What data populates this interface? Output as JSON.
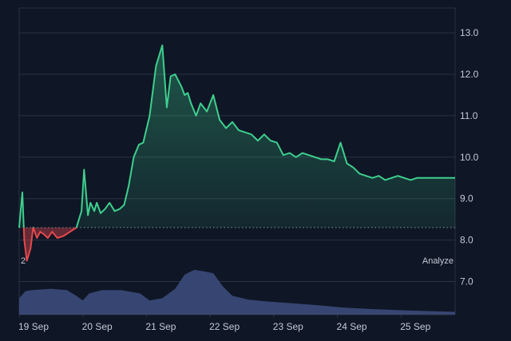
{
  "chart_data": {
    "type": "line",
    "theme": {
      "background": "#0f1625",
      "grid": "#2a3344",
      "up": "#3ecf8e",
      "down": "#e5484d",
      "volume": "#3b4a7a",
      "text": "#c4c9d4"
    },
    "x_tick_labels": [
      "19 Sep",
      "20 Sep",
      "21 Sep",
      "22 Sep",
      "23 Sep",
      "24 Sep",
      "25 Sep"
    ],
    "y_tick_labels": [
      "13.0",
      "12.0",
      "11.0",
      "10.0",
      "9.0",
      "8.0",
      "7.0"
    ],
    "y_ticks": [
      13,
      12,
      11,
      10,
      9,
      8,
      7
    ],
    "ylim": [
      6.2,
      13.6
    ],
    "baseline": 8.3,
    "grid": true,
    "volume_label": "2",
    "analyze_label": "Analyze",
    "series": [
      {
        "x": [
          0,
          0.05,
          0.08,
          0.12,
          0.18,
          0.22,
          0.28,
          0.33,
          0.38,
          0.45,
          0.52,
          0.6,
          0.7,
          0.8,
          0.9,
          0.98,
          1.02,
          1.08,
          1.12,
          1.18,
          1.22,
          1.28,
          1.35,
          1.42,
          1.5,
          1.58,
          1.65,
          1.72,
          1.8,
          1.88,
          1.95,
          2.05,
          2.15,
          2.25,
          2.32,
          2.38,
          2.45,
          2.5,
          2.55,
          2.6,
          2.65,
          2.7,
          2.78,
          2.85,
          2.95,
          3.05,
          3.15,
          3.25,
          3.35,
          3.45,
          3.55,
          3.65,
          3.75,
          3.85,
          3.95,
          4.05,
          4.15,
          4.25,
          4.35,
          4.45,
          4.55,
          4.65,
          4.75,
          4.85,
          4.95,
          5.05,
          5.15,
          5.25,
          5.35,
          5.45,
          5.55,
          5.65,
          5.75,
          5.85,
          5.95,
          6.05,
          6.15,
          6.25,
          6.35,
          6.45,
          6.55,
          6.65,
          6.75,
          6.85
        ],
        "values": [
          8.3,
          9.15,
          8.0,
          7.5,
          7.8,
          8.3,
          8.05,
          8.2,
          8.15,
          8.05,
          8.2,
          8.05,
          8.1,
          8.2,
          8.3,
          8.7,
          9.7,
          8.6,
          8.9,
          8.7,
          8.9,
          8.65,
          8.75,
          8.9,
          8.7,
          8.75,
          8.85,
          9.3,
          10.0,
          10.3,
          10.35,
          11.0,
          12.2,
          12.7,
          11.2,
          11.95,
          12.0,
          11.85,
          11.7,
          11.5,
          11.55,
          11.3,
          11.0,
          11.3,
          11.1,
          11.5,
          10.9,
          10.7,
          10.85,
          10.65,
          10.6,
          10.55,
          10.4,
          10.55,
          10.4,
          10.35,
          10.05,
          10.1,
          10.0,
          10.1,
          10.05,
          10.0,
          9.95,
          9.95,
          9.9,
          10.35,
          9.85,
          9.75,
          9.6,
          9.55,
          9.5,
          9.55,
          9.45,
          9.5,
          9.55,
          9.5,
          9.45,
          9.5,
          9.5,
          9.5,
          9.5,
          9.5,
          9.5,
          9.5
        ]
      }
    ],
    "volume": {
      "x": [
        0,
        0.1,
        0.2,
        0.5,
        0.75,
        0.9,
        1.0,
        1.1,
        1.3,
        1.6,
        1.9,
        2.05,
        2.25,
        2.45,
        2.6,
        2.75,
        2.9,
        3.05,
        3.2,
        3.35,
        3.6,
        3.9,
        4.3,
        4.7,
        5.1,
        5.5,
        5.9,
        6.3,
        6.6,
        6.85
      ],
      "values": [
        0.35,
        0.5,
        0.52,
        0.55,
        0.52,
        0.4,
        0.3,
        0.45,
        0.52,
        0.52,
        0.45,
        0.3,
        0.35,
        0.55,
        0.85,
        0.95,
        0.92,
        0.88,
        0.6,
        0.4,
        0.32,
        0.28,
        0.24,
        0.2,
        0.15,
        0.12,
        0.1,
        0.08,
        0.07,
        0.06
      ]
    }
  }
}
